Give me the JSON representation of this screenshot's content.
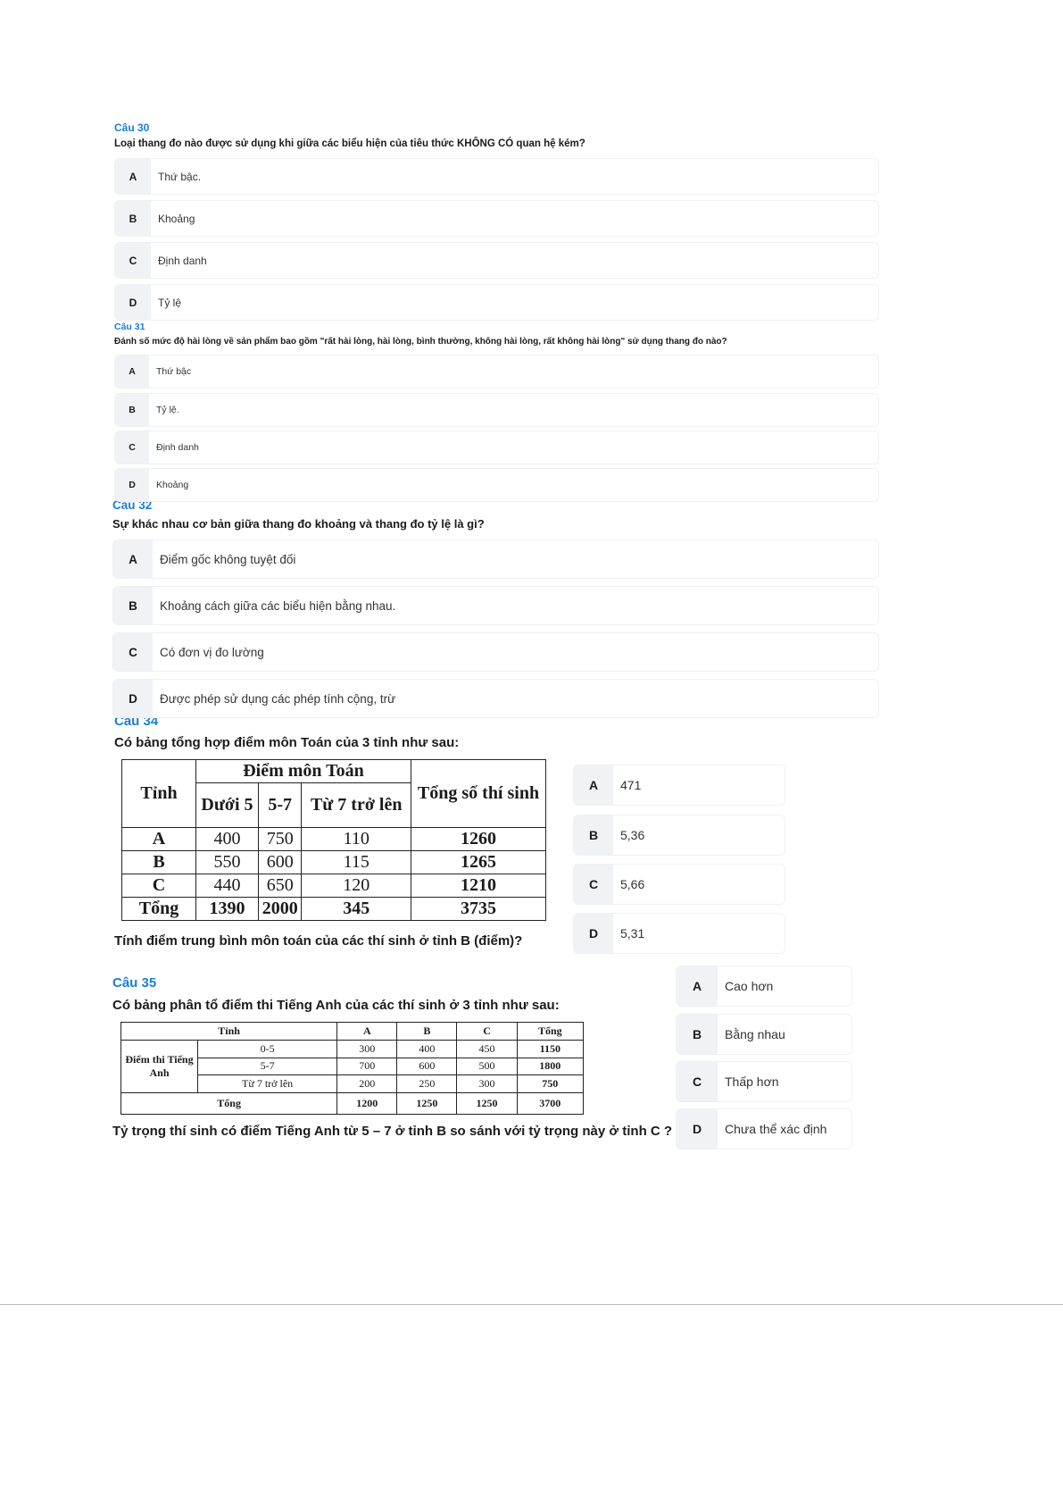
{
  "q30": {
    "label": "Câu 30",
    "text": "Loại thang đo nào được sử dụng khi giữa các biểu hiện của tiêu thức KHÔNG CÓ quan hệ kém?",
    "options": [
      {
        "letter": "A",
        "text": "Thứ bậc."
      },
      {
        "letter": "B",
        "text": "Khoảng"
      },
      {
        "letter": "C",
        "text": "Định danh"
      },
      {
        "letter": "D",
        "text": "Tỷ lệ"
      }
    ]
  },
  "q31": {
    "label": "Câu 31",
    "text": "Đánh số mức độ hài lòng về sản phẩm bao gồm \"rất hài lòng, hài lòng, bình thường, không hài lòng, rất không hài lòng\" sử dụng thang đo nào?",
    "options": [
      {
        "letter": "A",
        "text": "Thứ bậc"
      },
      {
        "letter": "B",
        "text": "Tỷ lệ."
      },
      {
        "letter": "C",
        "text": "Định danh"
      },
      {
        "letter": "D",
        "text": "Khoảng"
      }
    ]
  },
  "q32": {
    "label": "Câu 32",
    "text": "Sự khác nhau cơ bản giữa thang đo khoảng và thang đo tỷ lệ là gì?",
    "options": [
      {
        "letter": "A",
        "text": "Điểm gốc không tuyệt đối"
      },
      {
        "letter": "B",
        "text": "Khoảng cách giữa các biểu hiện bằng nhau."
      },
      {
        "letter": "C",
        "text": "Có đơn vị đo lường"
      },
      {
        "letter": "D",
        "text": "Được phép sử dụng các phép tính cộng, trừ"
      }
    ]
  },
  "q34": {
    "label": "Câu 34",
    "intro": "Có bảng tổng hợp điểm môn Toán của 3 tỉnh như sau:",
    "text": "Tính điểm trung bình môn toán của các thí sinh ở tỉnh B (điểm)?",
    "table": {
      "h_province": "Tỉnh",
      "h_group": "Điểm môn Toán",
      "h_total": "Tổng số thí sinh",
      "cols": [
        "Dưới 5",
        "5-7",
        "Từ 7 trở lên"
      ],
      "rows": [
        [
          "A",
          "400",
          "750",
          "110",
          "1260"
        ],
        [
          "B",
          "550",
          "600",
          "115",
          "1265"
        ],
        [
          "C",
          "440",
          "650",
          "120",
          "1210"
        ],
        [
          "Tổng",
          "1390",
          "2000",
          "345",
          "3735"
        ]
      ]
    },
    "options": [
      {
        "letter": "A",
        "text": "471"
      },
      {
        "letter": "B",
        "text": "5,36"
      },
      {
        "letter": "C",
        "text": "5,66"
      },
      {
        "letter": "D",
        "text": "5,31"
      }
    ]
  },
  "q35": {
    "label": "Câu 35",
    "intro": "Có bảng phân tổ điểm thi Tiếng Anh của các thí sinh ở 3 tỉnh như sau:",
    "text": "Tỷ trọng thí sinh có điểm Tiếng Anh từ 5 – 7 ở tỉnh B so sánh với tỷ trọng này ở tỉnh C ?",
    "table": {
      "h_province": "Tỉnh",
      "cols": [
        "A",
        "B",
        "C",
        "Tổng"
      ],
      "group": "Điểm thi Tiếng Anh",
      "rows": [
        [
          "0-5",
          "300",
          "400",
          "450",
          "1150"
        ],
        [
          "5-7",
          "700",
          "600",
          "500",
          "1800"
        ],
        [
          "Từ 7 trở lên",
          "200",
          "250",
          "300",
          "750"
        ]
      ],
      "total": [
        "Tổng",
        "1200",
        "1250",
        "1250",
        "3700"
      ]
    },
    "options": [
      {
        "letter": "A",
        "text": "Cao hơn"
      },
      {
        "letter": "B",
        "text": "Bằng nhau"
      },
      {
        "letter": "C",
        "text": "Thấp hơn"
      },
      {
        "letter": "D",
        "text": "Chưa thể xác định"
      }
    ]
  }
}
